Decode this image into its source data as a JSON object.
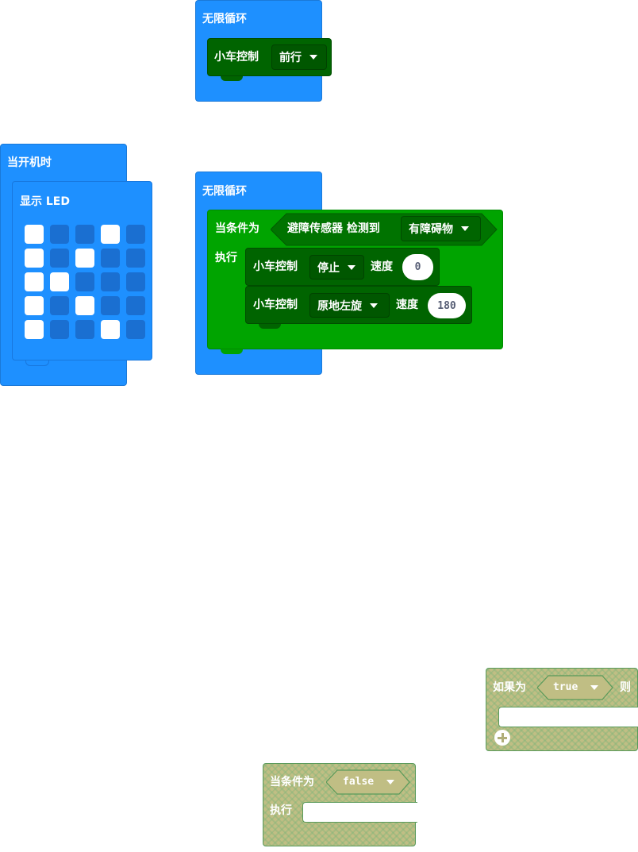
{
  "top_loop": {
    "label": "无限循环",
    "car_block": {
      "label": "小车控制",
      "dropdown": "前行"
    }
  },
  "on_start": {
    "label": "当开机时",
    "show_led": {
      "label": "显示 LED",
      "grid": [
        [
          1,
          0,
          0,
          1,
          0
        ],
        [
          1,
          0,
          1,
          0,
          0
        ],
        [
          1,
          1,
          0,
          0,
          0
        ],
        [
          1,
          0,
          1,
          0,
          0
        ],
        [
          1,
          0,
          0,
          1,
          0
        ]
      ]
    }
  },
  "loop2": {
    "label": "无限循环",
    "while_block": {
      "label": "当条件为",
      "do_label": "执行",
      "condition": {
        "sensor_label": "避障传感器 检测到",
        "dropdown": "有障碍物"
      }
    },
    "car1": {
      "label": "小车控制",
      "dropdown": "停止",
      "speed_label": "速度",
      "speed": "0"
    },
    "car2": {
      "label": "小车控制",
      "dropdown": "原地左旋",
      "speed_label": "速度",
      "speed": "180"
    }
  },
  "if_block": {
    "label": "如果为",
    "value": "true",
    "then_label": "则"
  },
  "while_false": {
    "label": "当条件为",
    "value": "false",
    "do_label": "执行"
  },
  "colors": {
    "loop_blue": "#1e90ff",
    "car_dark_green": "#006400",
    "logic_green": "#00a400",
    "disabled_olive": "#c0be84"
  }
}
